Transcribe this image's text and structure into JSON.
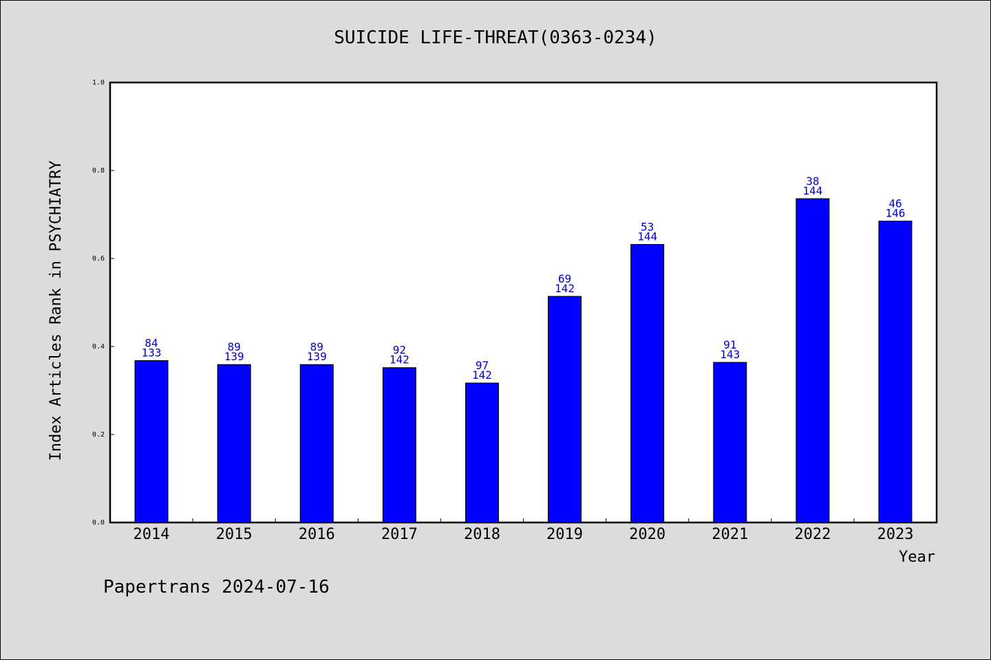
{
  "chart_data": {
    "type": "bar",
    "title": "SUICIDE LIFE-THREAT(0363-0234)",
    "xlabel": "Year",
    "ylabel": "Index Articles Rank in PSYCHIATRY",
    "ylim": [
      0,
      1.0
    ],
    "yticks": [
      "0.0",
      "0.2",
      "0.4",
      "0.6",
      "0.8",
      "1.0"
    ],
    "categories": [
      "2014",
      "2015",
      "2016",
      "2017",
      "2018",
      "2019",
      "2020",
      "2021",
      "2022",
      "2023"
    ],
    "values": [
      0.368,
      0.359,
      0.359,
      0.352,
      0.317,
      0.514,
      0.632,
      0.364,
      0.736,
      0.685
    ],
    "labels_top": [
      "84",
      "89",
      "89",
      "92",
      "97",
      "69",
      "53",
      "91",
      "38",
      "46"
    ],
    "labels_bottom": [
      "133",
      "139",
      "139",
      "142",
      "142",
      "142",
      "144",
      "143",
      "144",
      "146"
    ],
    "bar_color": "#0000ff",
    "label_color": "#0000cc",
    "grid": false
  },
  "footer": "Papertrans 2024-07-16"
}
